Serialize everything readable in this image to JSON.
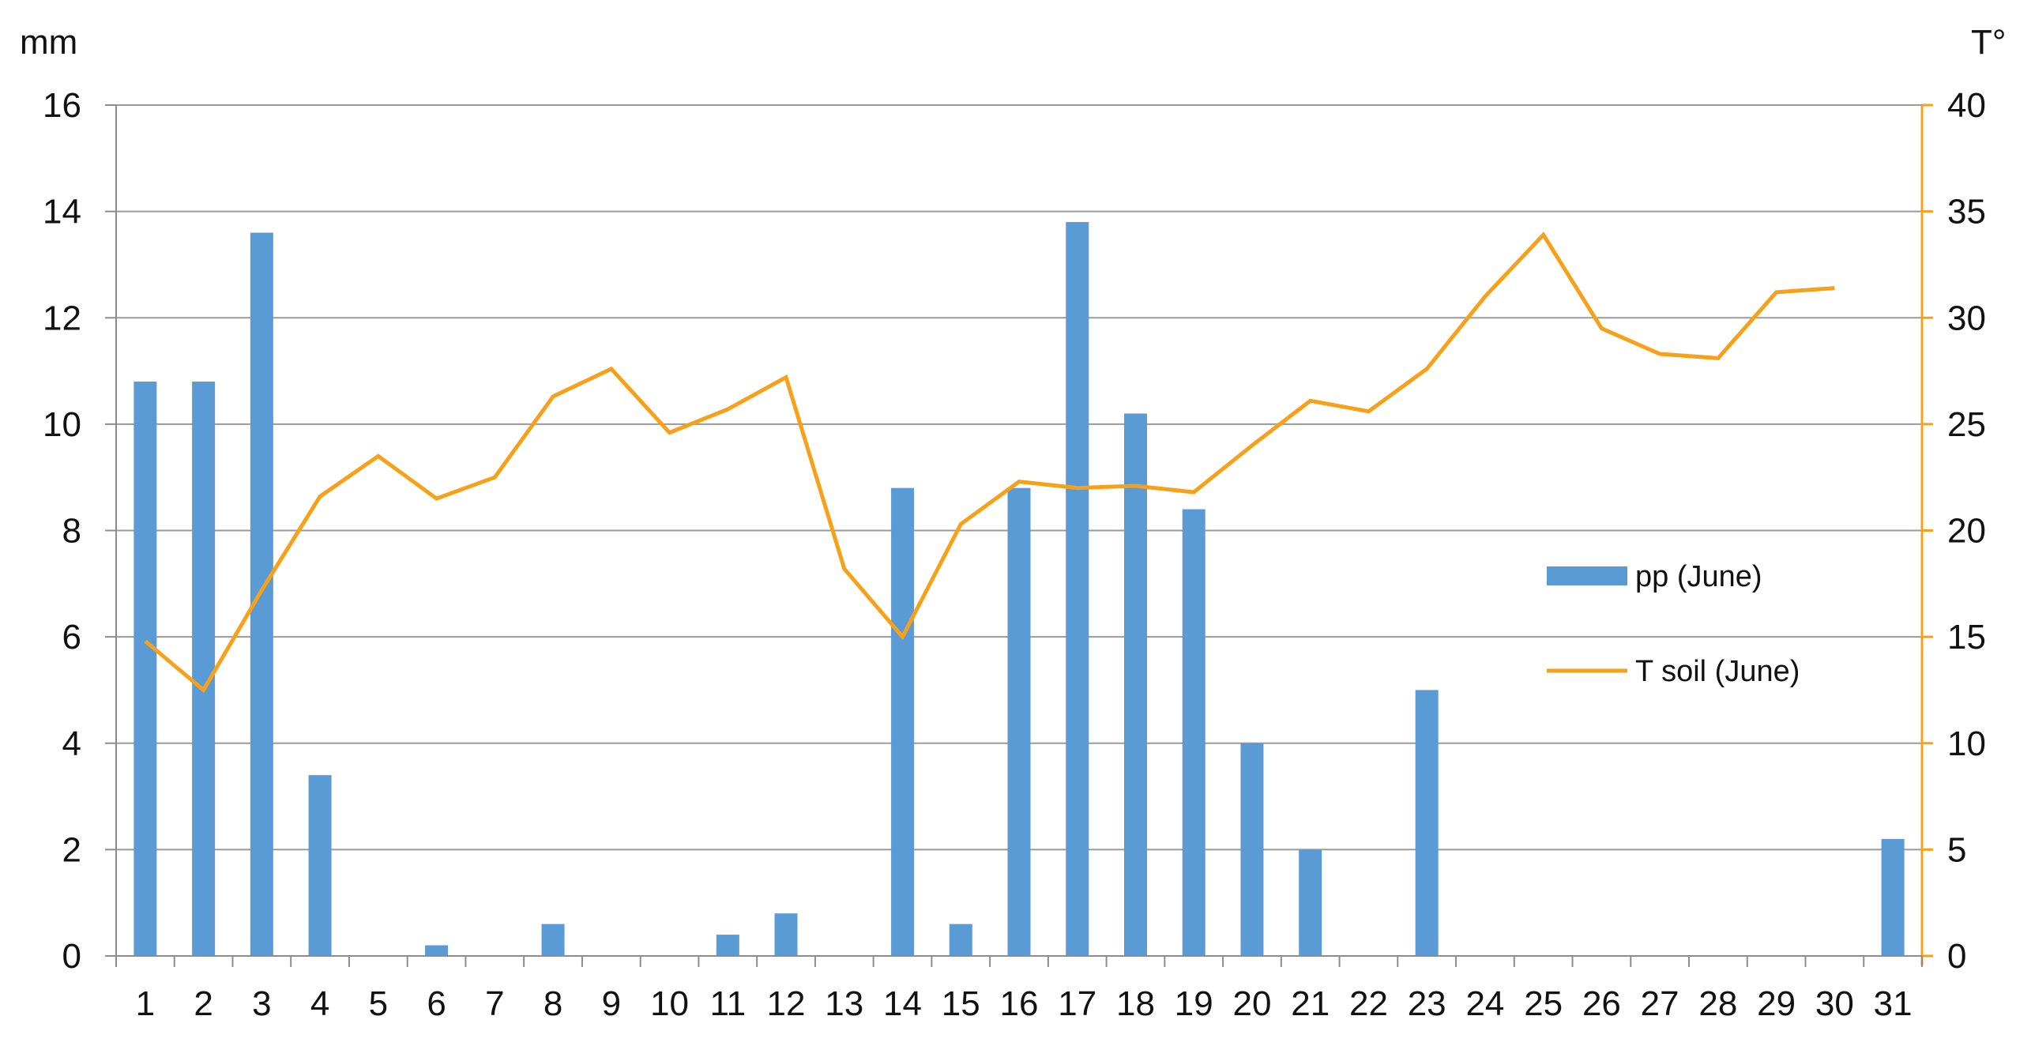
{
  "chart_data": {
    "type": "bar",
    "categories": [
      "1",
      "2",
      "3",
      "4",
      "5",
      "6",
      "7",
      "8",
      "9",
      "10",
      "11",
      "12",
      "13",
      "14",
      "15",
      "16",
      "17",
      "18",
      "19",
      "20",
      "21",
      "22",
      "23",
      "24",
      "25",
      "26",
      "27",
      "28",
      "29",
      "30",
      "31"
    ],
    "series": [
      {
        "name": "pp (June)",
        "type": "bar",
        "axis": "left",
        "color": "#5b9bd5",
        "values": [
          10.8,
          10.8,
          13.6,
          3.4,
          0,
          0.2,
          0,
          0.6,
          0,
          0,
          0.4,
          0.8,
          0,
          8.8,
          0.6,
          8.8,
          13.8,
          10.2,
          8.4,
          4.0,
          2.0,
          0,
          5.0,
          0,
          0,
          0,
          0,
          0,
          0,
          0,
          2.2
        ]
      },
      {
        "name": "T soil (June)",
        "type": "line",
        "axis": "right",
        "color": "#f7a01a",
        "values": [
          14.8,
          12.5,
          17.2,
          21.6,
          23.5,
          21.5,
          22.5,
          26.3,
          27.6,
          24.6,
          25.7,
          27.2,
          18.2,
          15.0,
          20.3,
          22.3,
          22.0,
          22.1,
          21.8,
          24.0,
          26.1,
          25.6,
          27.6,
          31.0,
          33.9,
          29.5,
          28.3,
          28.1,
          31.2,
          31.4,
          null
        ]
      }
    ],
    "y_left": {
      "label": "mm",
      "ylim": [
        0,
        16
      ],
      "ticks": [
        0,
        2,
        4,
        6,
        8,
        10,
        12,
        14,
        16
      ]
    },
    "y_right": {
      "label": "T°",
      "ylim": [
        0,
        40
      ],
      "ticks": [
        0,
        5,
        10,
        15,
        20,
        25,
        30,
        35,
        40
      ],
      "color": "#f7a01a"
    },
    "grid": true,
    "grid_color": "#9a9a9a",
    "legend": {
      "placement": "right-middle",
      "entries": [
        "pp (June)",
        "T soil (June)"
      ]
    }
  }
}
